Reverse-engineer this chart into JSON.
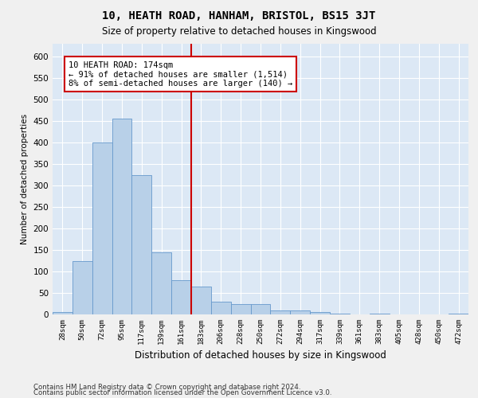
{
  "title": "10, HEATH ROAD, HANHAM, BRISTOL, BS15 3JT",
  "subtitle": "Size of property relative to detached houses in Kingswood",
  "xlabel": "Distribution of detached houses by size in Kingswood",
  "ylabel": "Number of detached properties",
  "bar_color": "#b8d0e8",
  "bar_edge_color": "#6699cc",
  "background_color": "#dce8f5",
  "fig_background": "#f0f0f0",
  "grid_color": "#ffffff",
  "categories": [
    "28sqm",
    "50sqm",
    "72sqm",
    "95sqm",
    "117sqm",
    "139sqm",
    "161sqm",
    "183sqm",
    "206sqm",
    "228sqm",
    "250sqm",
    "272sqm",
    "294sqm",
    "317sqm",
    "339sqm",
    "361sqm",
    "383sqm",
    "405sqm",
    "428sqm",
    "450sqm",
    "472sqm"
  ],
  "values": [
    5,
    125,
    400,
    455,
    325,
    145,
    80,
    65,
    30,
    25,
    25,
    10,
    10,
    5,
    2,
    0,
    1,
    0,
    0,
    0,
    1
  ],
  "vline_pos": 6.5,
  "vline_color": "#cc0000",
  "annotation_text": "10 HEATH ROAD: 174sqm\n← 91% of detached houses are smaller (1,514)\n8% of semi-detached houses are larger (140) →",
  "annotation_box_color": "#ffffff",
  "annotation_box_edge_color": "#cc0000",
  "ylim": [
    0,
    630
  ],
  "yticks": [
    0,
    50,
    100,
    150,
    200,
    250,
    300,
    350,
    400,
    450,
    500,
    550,
    600
  ],
  "footer_line1": "Contains HM Land Registry data © Crown copyright and database right 2024.",
  "footer_line2": "Contains public sector information licensed under the Open Government Licence v3.0."
}
